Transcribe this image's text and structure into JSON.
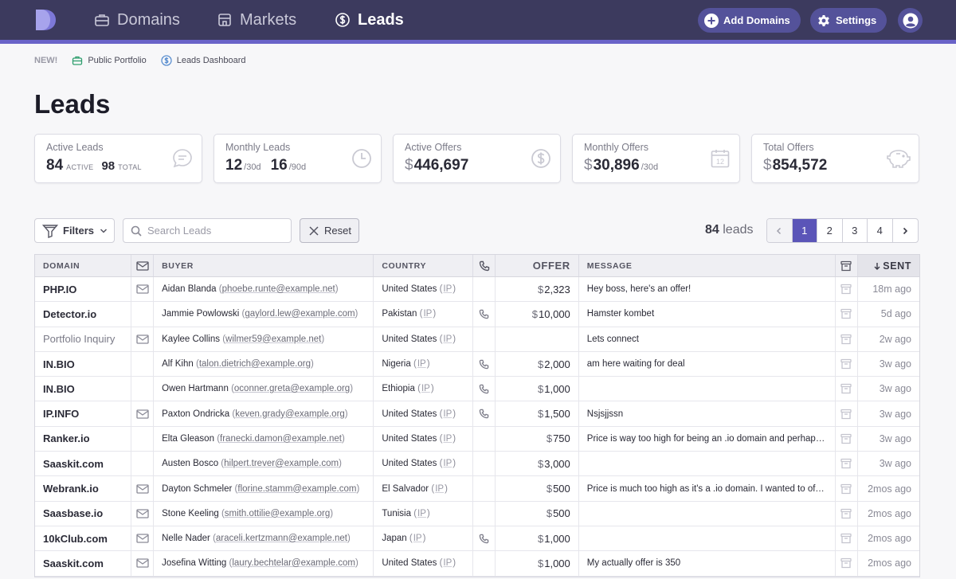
{
  "nav": {
    "items": [
      {
        "label": "Domains",
        "icon": "briefcase-icon"
      },
      {
        "label": "Markets",
        "icon": "storefront-icon"
      },
      {
        "label": "Leads",
        "icon": "dollar-circle-icon"
      }
    ],
    "add_domains": "Add Domains",
    "settings": "Settings"
  },
  "subnav": {
    "new_label": "NEW!",
    "public_portfolio": "Public Portfolio",
    "leads_dashboard": "Leads Dashboard"
  },
  "page_title": "Leads",
  "stats": {
    "active_leads": {
      "label": "Active Leads",
      "active": "84",
      "active_unit": "ACTIVE",
      "total": "98",
      "total_unit": "TOTAL"
    },
    "monthly_leads": {
      "label": "Monthly Leads",
      "v30": "12",
      "u30": "/30d",
      "v90": "16",
      "u90": "/90d"
    },
    "active_offers": {
      "label": "Active Offers",
      "currency": "$",
      "value": "446,697"
    },
    "monthly_offers": {
      "label": "Monthly Offers",
      "currency": "$",
      "value": "30,896",
      "unit": "/30d"
    },
    "total_offers": {
      "label": "Total Offers",
      "currency": "$",
      "value": "854,572"
    }
  },
  "toolbar": {
    "filters": "Filters",
    "search_placeholder": "Search Leads",
    "reset": "Reset",
    "lead_count": "84",
    "lead_count_unit": "leads",
    "pages": [
      "1",
      "2",
      "3",
      "4"
    ],
    "current_page": "1"
  },
  "table": {
    "headers": {
      "domain": "DOMAIN",
      "buyer": "BUYER",
      "country": "COUNTRY",
      "offer": "OFFER",
      "message": "MESSAGE",
      "sent": "SENT"
    },
    "rows": [
      {
        "domain": "PHP.IO",
        "mail": true,
        "buyer": "Aidan Blanda",
        "email": "phoebe.runte@example.net",
        "country": "United States",
        "ip": "IP",
        "phone": false,
        "offer": "2,323",
        "message": "Hey boss, here's an offer!",
        "sent": "18m ago",
        "muted": false
      },
      {
        "domain": "Detector.io",
        "mail": false,
        "buyer": "Jammie Powlowski",
        "email": "gaylord.lew@example.com",
        "country": "Pakistan",
        "ip": "IP",
        "phone": true,
        "offer": "10,000",
        "message": "Hamster kombet",
        "sent": "5d ago",
        "muted": false
      },
      {
        "domain": "Portfolio Inquiry",
        "mail": true,
        "buyer": "Kaylee Collins",
        "email": "wilmer59@example.net",
        "country": "United States",
        "ip": "IP",
        "phone": false,
        "offer": "",
        "message": "Lets connect",
        "sent": "2w ago",
        "muted": true
      },
      {
        "domain": "IN.BIO",
        "mail": false,
        "buyer": "Alf Kihn",
        "email": "talon.dietrich@example.org",
        "country": "Nigeria",
        "ip": "IP",
        "phone": true,
        "offer": "2,000",
        "message": "am here waiting for deal",
        "sent": "3w ago",
        "muted": false
      },
      {
        "domain": "IN.BIO",
        "mail": false,
        "buyer": "Owen Hartmann",
        "email": "oconner.greta@example.org",
        "country": "Ethiopia",
        "ip": "IP",
        "phone": true,
        "offer": "1,000",
        "message": "",
        "sent": "3w ago",
        "muted": false
      },
      {
        "domain": "IP.INFO",
        "mail": true,
        "buyer": "Paxton Ondricka",
        "email": "keven.grady@example.org",
        "country": "United States",
        "ip": "IP",
        "phone": true,
        "offer": "1,500",
        "message": "Nsjsjjssn",
        "sent": "3w ago",
        "muted": false
      },
      {
        "domain": "Ranker.io",
        "mail": false,
        "buyer": "Elta Gleason",
        "email": "franecki.damon@example.net",
        "country": "United States",
        "ip": "IP",
        "phone": false,
        "offer": "750",
        "message": "Price is way too high for being an .io domain and perhaps …",
        "sent": "3w ago",
        "muted": false
      },
      {
        "domain": "Saaskit.com",
        "mail": false,
        "buyer": "Austen Bosco",
        "email": "hilpert.trever@example.com",
        "country": "United States",
        "ip": "IP",
        "phone": false,
        "offer": "3,000",
        "message": "",
        "sent": "3w ago",
        "muted": false
      },
      {
        "domain": "Webrank.io",
        "mail": true,
        "buyer": "Dayton Schmeler",
        "email": "florine.stamm@example.com",
        "country": "El Salvador",
        "ip": "IP",
        "phone": false,
        "offer": "500",
        "message": "Price is much too high as it's a .io domain. I wanted to offe…",
        "sent": "2mos ago",
        "muted": false
      },
      {
        "domain": "Saasbase.io",
        "mail": true,
        "buyer": "Stone Keeling",
        "email": "smith.ottilie@example.org",
        "country": "Tunisia",
        "ip": "IP",
        "phone": false,
        "offer": "500",
        "message": "",
        "sent": "2mos ago",
        "muted": false
      },
      {
        "domain": "10kClub.com",
        "mail": true,
        "buyer": "Nelle Nader",
        "email": "araceli.kertzmann@example.net",
        "country": "Japan",
        "ip": "IP",
        "phone": true,
        "offer": "1,000",
        "message": "",
        "sent": "2mos ago",
        "muted": false
      },
      {
        "domain": "Saaskit.com",
        "mail": true,
        "buyer": "Josefina Witting",
        "email": "laury.bechtelar@example.com",
        "country": "United States",
        "ip": "IP",
        "phone": false,
        "offer": "1,000",
        "message": "My actually offer is 350",
        "sent": "2mos ago",
        "muted": false
      }
    ]
  },
  "colors": {
    "nav_bg": "#3c3a5e",
    "accent": "#5b55b8",
    "nav_accent": "#6a63c8"
  }
}
